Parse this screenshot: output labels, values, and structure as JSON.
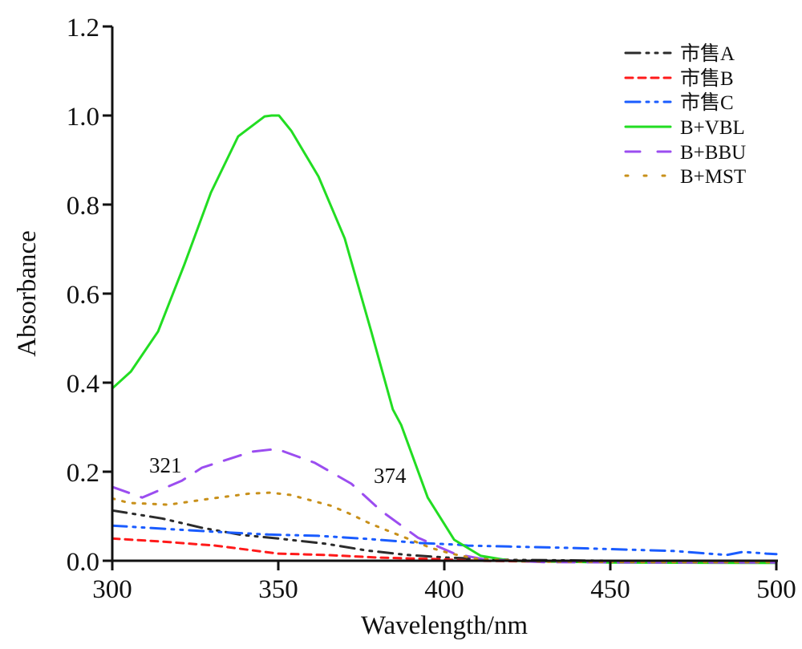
{
  "chart_data": {
    "type": "line",
    "title": "",
    "xlabel": "Wavelength/nm",
    "ylabel": "Absorbance",
    "xlim": [
      300,
      500
    ],
    "ylim": [
      0.0,
      1.2
    ],
    "xticks": [
      300,
      350,
      400,
      450,
      500
    ],
    "xtick_labels": [
      "300",
      "350",
      "400",
      "450",
      "500"
    ],
    "yticks": [
      0.0,
      0.2,
      0.4,
      0.6,
      0.8,
      1.0,
      1.2
    ],
    "ytick_labels": [
      "0.0",
      "0.2",
      "0.4",
      "0.6",
      "0.8",
      "1.0",
      "1.2"
    ],
    "grid": false,
    "legend_position": "top-right",
    "annotations": [
      {
        "text": "321",
        "x": 321,
        "y": 0.2
      },
      {
        "text": "374",
        "x": 374,
        "y": 0.19
      }
    ],
    "series": [
      {
        "name": "市售A",
        "color": "#2b2b2b",
        "dash": "dash-dot-dot",
        "x": [
          300,
          315,
          327,
          339,
          350,
          364.5,
          376.6,
          389,
          401,
          420,
          450,
          500
        ],
        "y": [
          0.113,
          0.095,
          0.074,
          0.058,
          0.05,
          0.038,
          0.023,
          0.013,
          0.007,
          0.002,
          0.0,
          0.0
        ]
      },
      {
        "name": "市售B",
        "color": "#ff1a1a",
        "dash": "dash",
        "x": [
          300,
          315,
          331,
          350,
          364.5,
          380.5,
          396.6,
          410,
          430,
          460,
          500
        ],
        "y": [
          0.05,
          0.043,
          0.034,
          0.016,
          0.013,
          0.007,
          0.004,
          0.0,
          -0.002,
          -0.002,
          -0.002
        ]
      },
      {
        "name": "市售C",
        "color": "#1a5cff",
        "dash": "dash-dot-dot",
        "x": [
          300,
          315,
          331,
          347,
          362,
          377,
          392.5,
          404,
          407,
          437,
          469,
          485,
          490,
          497,
          500
        ],
        "y": [
          0.079,
          0.072,
          0.065,
          0.059,
          0.056,
          0.049,
          0.04,
          0.036,
          0.034,
          0.029,
          0.022,
          0.013,
          0.02,
          0.016,
          0.015
        ]
      },
      {
        "name": "B+VBL",
        "color": "#22dd22",
        "dash": "solid",
        "x": [
          300,
          305.6,
          313.8,
          321.7,
          329.7,
          337.9,
          345.9,
          348,
          350.2,
          353.9,
          362.1,
          370,
          378,
          384.5,
          387,
          395,
          403,
          411,
          420,
          450,
          500
        ],
        "y": [
          0.387,
          0.425,
          0.515,
          0.665,
          0.827,
          0.953,
          0.998,
          1.0,
          1.0,
          0.966,
          0.863,
          0.724,
          0.515,
          0.34,
          0.305,
          0.142,
          0.047,
          0.011,
          0.0,
          -0.004,
          -0.005
        ]
      },
      {
        "name": "B+BBU",
        "color": "#9b4df0",
        "dash": "long-dash",
        "x": [
          300,
          309,
          321,
          327,
          342,
          348,
          350,
          361,
          372,
          381,
          392,
          403,
          412,
          430,
          460,
          500
        ],
        "y": [
          0.166,
          0.142,
          0.18,
          0.209,
          0.245,
          0.25,
          0.25,
          0.22,
          0.173,
          0.112,
          0.052,
          0.016,
          0.003,
          -0.003,
          -0.004,
          -0.004
        ]
      },
      {
        "name": "B+MST",
        "color": "#c8901a",
        "dash": "dot",
        "x": [
          300,
          305,
          317,
          329,
          341.5,
          347.6,
          353.6,
          365.7,
          371.7,
          377.8,
          383.8,
          389.9,
          395.9,
          402,
          410,
          430,
          460,
          500
        ],
        "y": [
          0.14,
          0.13,
          0.126,
          0.139,
          0.151,
          0.153,
          0.148,
          0.124,
          0.105,
          0.083,
          0.065,
          0.047,
          0.029,
          0.016,
          0.004,
          -0.002,
          -0.003,
          -0.003
        ]
      }
    ]
  }
}
